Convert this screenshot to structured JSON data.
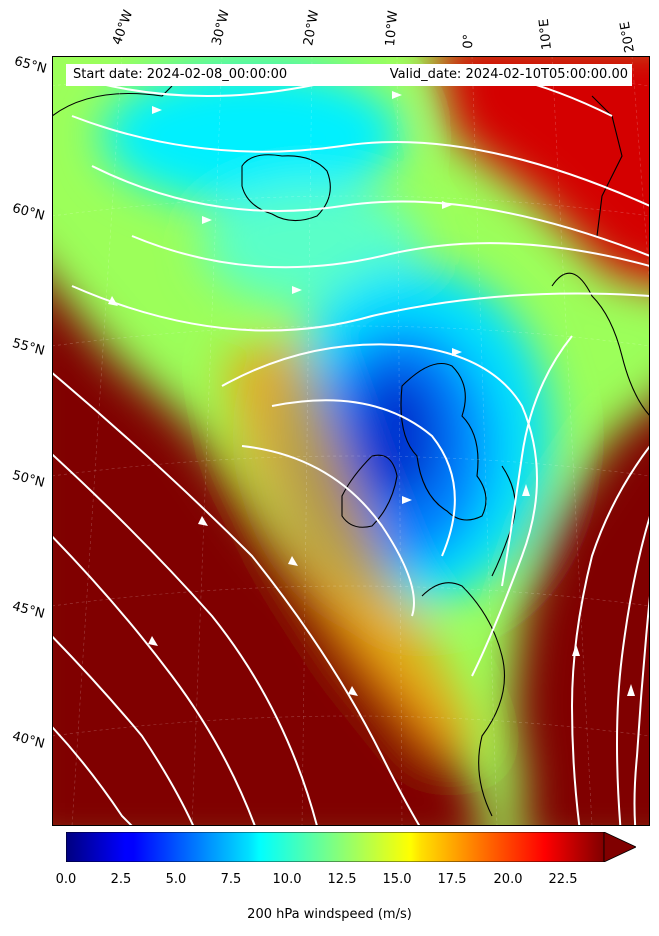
{
  "header": {
    "start_label": "Start date: 2024-02-08_00:00:00",
    "valid_label": "Valid_date: 2024-02-10T05:00:00.00"
  },
  "axes": {
    "longitude_labels": [
      "40°W",
      "30°W",
      "20°W",
      "10°W",
      "0°",
      "10°E",
      "20°E"
    ],
    "latitude_labels": [
      "65°N",
      "60°N",
      "55°N",
      "50°N",
      "45°N",
      "40°N"
    ]
  },
  "colorbar": {
    "label": "200 hPa windspeed (m/s)",
    "ticks": [
      "0.0",
      "2.5",
      "5.0",
      "7.5",
      "10.0",
      "12.5",
      "15.0",
      "17.5",
      "20.0",
      "22.5"
    ],
    "min": 0,
    "max": 25,
    "extend": "max",
    "colormap": "jet"
  },
  "colors": {
    "max_wind": "#800000",
    "jet_red": "#d40000",
    "orange": "#ff8c00",
    "yellow": "#ffee00",
    "green_yellow": "#9cff5a",
    "cyan": "#00f0ff",
    "blue": "#0060ff",
    "dark_blue": "#00007f",
    "streamline": "#ffffff",
    "coastline": "#000000"
  }
}
